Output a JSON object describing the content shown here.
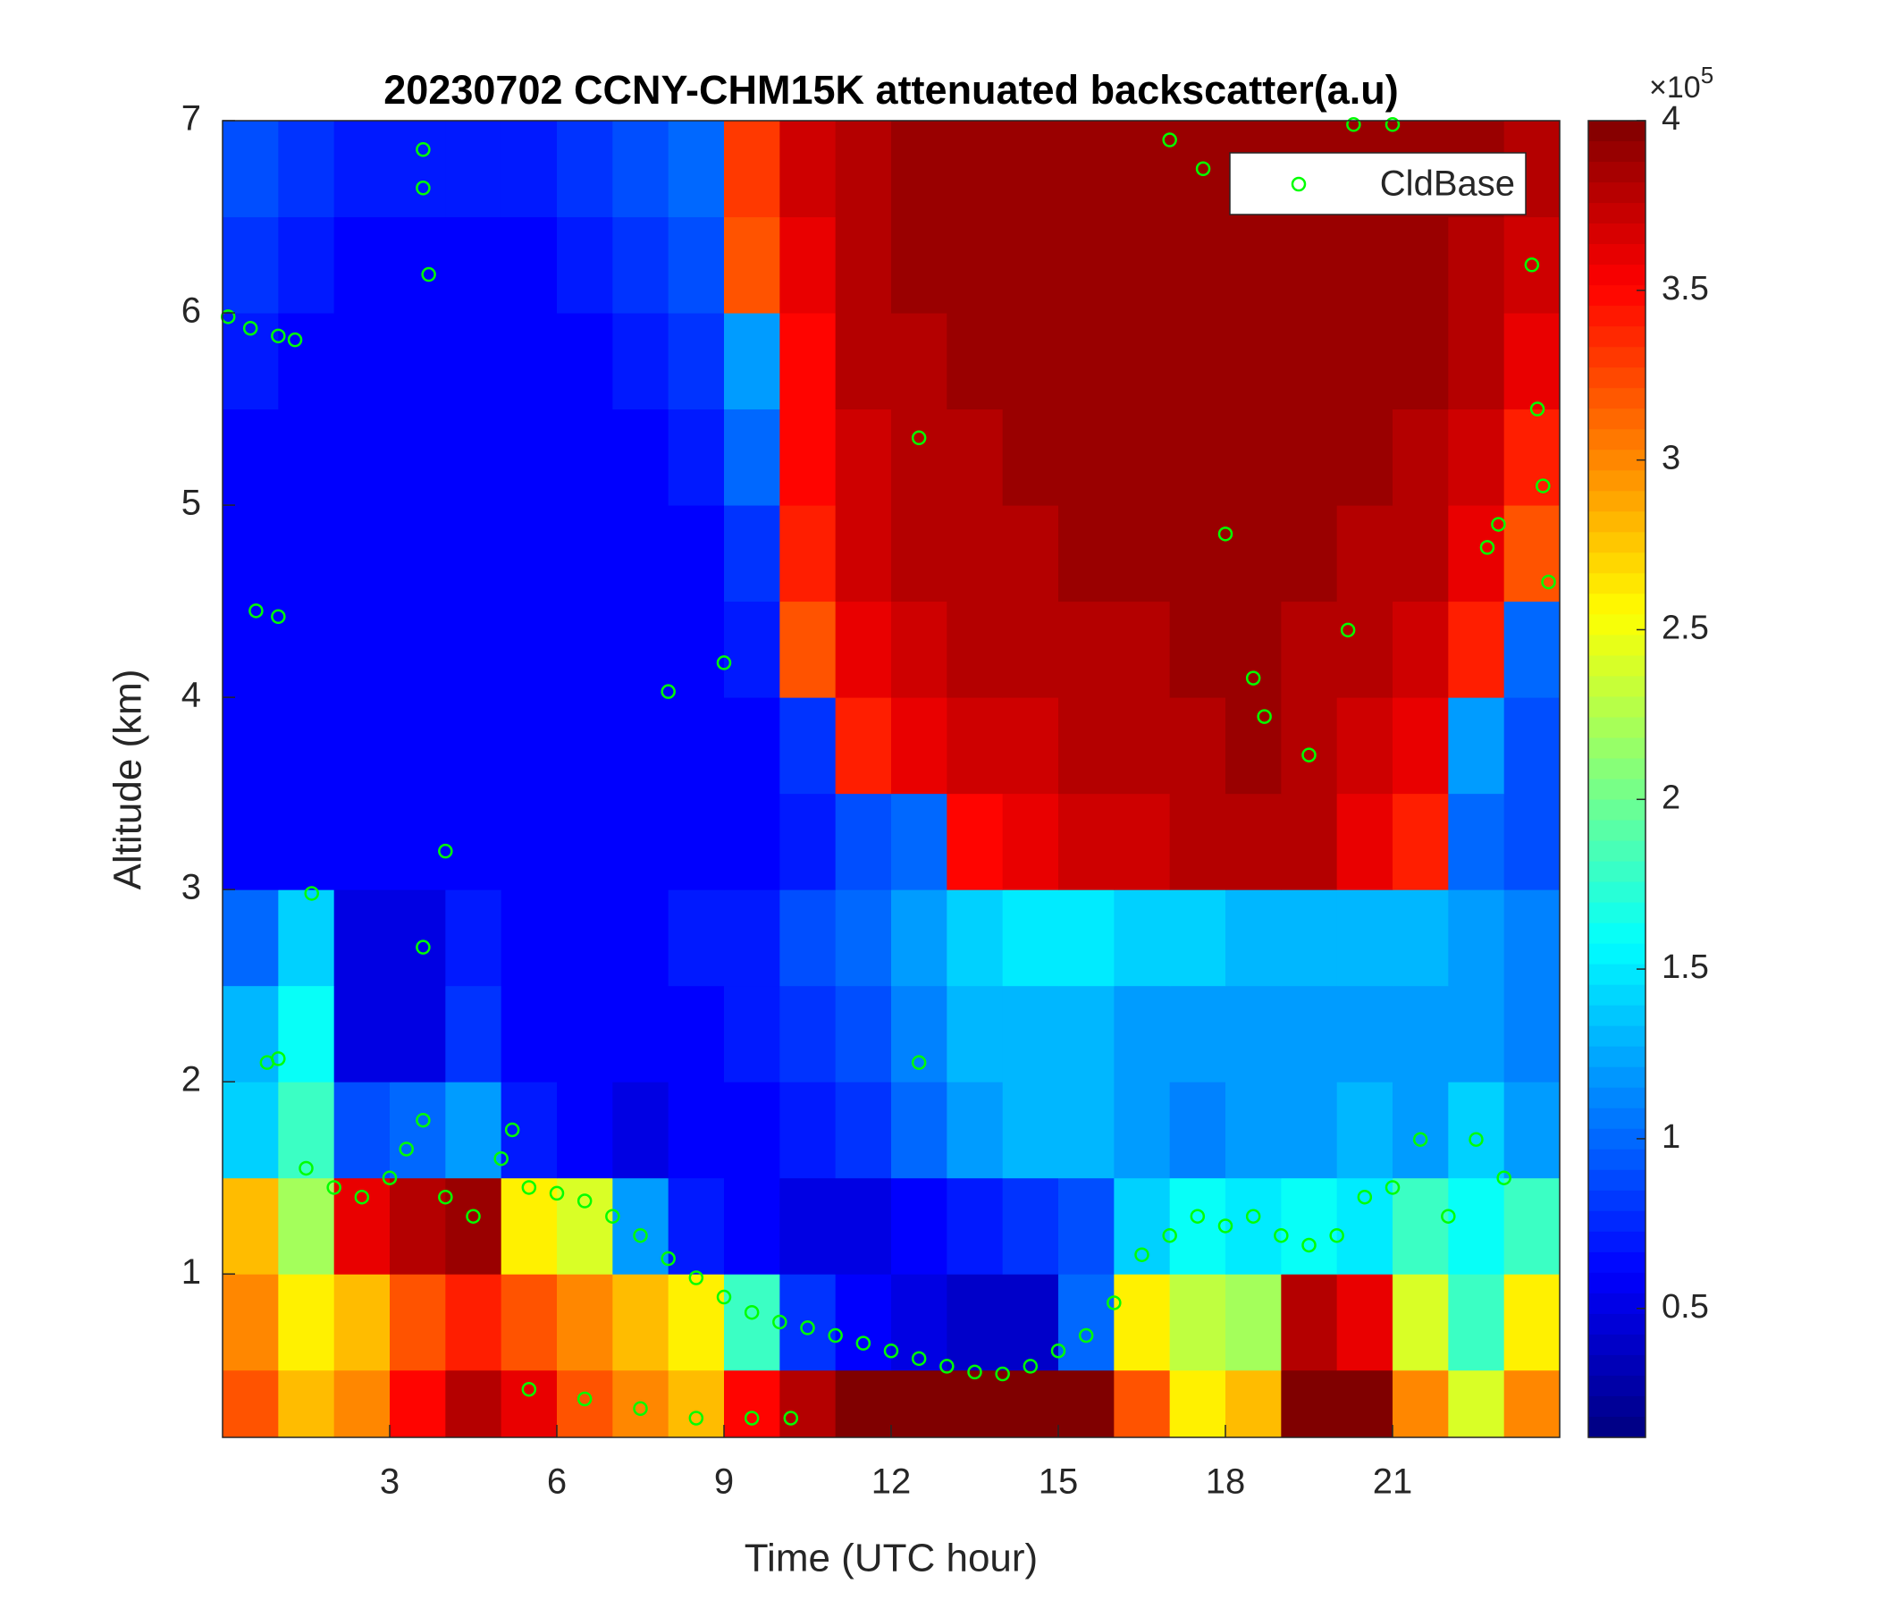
{
  "chart_data": {
    "type": "heatmap",
    "title": "20230702 CCNY-CHM15K attenuated backscatter(a.u)",
    "x_label": "Time (UTC hour)",
    "y_label": "Altitude (km)",
    "xlim": [
      0,
      24
    ],
    "ylim": [
      0.15,
      7
    ],
    "xticks": [
      3,
      6,
      9,
      12,
      15,
      18,
      21
    ],
    "yticks": [
      1,
      2,
      3,
      4,
      5,
      6,
      7
    ],
    "colormap": "jet",
    "clim": [
      0.12,
      4
    ],
    "colorbar_ticks": [
      0.5,
      1,
      1.5,
      2,
      2.5,
      3,
      3.5,
      4
    ],
    "colorbar_multiplier": "×10",
    "colorbar_exponent": "5",
    "x_edges": [
      0,
      1,
      2,
      3,
      4,
      5,
      6,
      7,
      8,
      9,
      10,
      11,
      12,
      13,
      14,
      15,
      16,
      17,
      18,
      19,
      20,
      21,
      22,
      23,
      24
    ],
    "y_edges": [
      0.15,
      0.5,
      1,
      1.5,
      2,
      2.5,
      3,
      3.5,
      4,
      4.5,
      5,
      5.5,
      6,
      6.5,
      7
    ],
    "values": [
      [
        3.2,
        2.8,
        3.0,
        3.5,
        3.8,
        3.6,
        3.2,
        3.0,
        2.8,
        3.5,
        3.8,
        4,
        4,
        4,
        4,
        4,
        3.2,
        2.6,
        2.8,
        4,
        4,
        3.0,
        2.4,
        3.0
      ],
      [
        3.0,
        2.6,
        2.8,
        3.2,
        3.4,
        3.2,
        3.0,
        2.8,
        2.6,
        1.8,
        0.8,
        0.6,
        0.5,
        0.4,
        0.4,
        1.0,
        2.6,
        2.3,
        2.2,
        3.8,
        3.6,
        2.4,
        1.8,
        2.6
      ],
      [
        2.8,
        2.2,
        3.6,
        3.8,
        3.9,
        2.6,
        2.4,
        1.2,
        0.7,
        0.6,
        0.5,
        0.5,
        0.6,
        0.7,
        0.8,
        0.9,
        1.4,
        1.6,
        1.5,
        1.6,
        1.5,
        1.8,
        1.6,
        1.8
      ],
      [
        1.4,
        1.8,
        0.9,
        1.0,
        1.2,
        0.7,
        0.6,
        0.5,
        0.6,
        0.6,
        0.7,
        0.8,
        1.0,
        1.2,
        1.3,
        1.3,
        1.2,
        1.1,
        1.2,
        1.2,
        1.3,
        1.2,
        1.4,
        1.2
      ],
      [
        1.3,
        1.6,
        0.5,
        0.5,
        0.8,
        0.6,
        0.6,
        0.6,
        0.6,
        0.7,
        0.8,
        0.9,
        1.1,
        1.3,
        1.3,
        1.3,
        1.2,
        1.2,
        1.2,
        1.2,
        1.2,
        1.2,
        1.2,
        1.1
      ],
      [
        1.0,
        1.4,
        0.5,
        0.5,
        0.7,
        0.6,
        0.6,
        0.6,
        0.7,
        0.7,
        0.9,
        1.0,
        1.2,
        1.4,
        1.5,
        1.5,
        1.4,
        1.4,
        1.3,
        1.3,
        1.3,
        1.3,
        1.2,
        1.1
      ],
      [
        0.6,
        0.6,
        0.6,
        0.6,
        0.6,
        0.6,
        0.6,
        0.6,
        0.6,
        0.6,
        0.7,
        0.9,
        1.0,
        3.5,
        3.6,
        3.7,
        3.7,
        3.8,
        3.8,
        3.8,
        3.6,
        3.4,
        1.0,
        0.9
      ],
      [
        0.6,
        0.6,
        0.6,
        0.6,
        0.6,
        0.6,
        0.6,
        0.6,
        0.6,
        0.6,
        0.8,
        3.4,
        3.6,
        3.7,
        3.7,
        3.8,
        3.8,
        3.8,
        3.9,
        3.8,
        3.7,
        3.6,
        1.2,
        0.9
      ],
      [
        0.6,
        0.6,
        0.6,
        0.6,
        0.6,
        0.6,
        0.6,
        0.6,
        0.6,
        0.7,
        3.2,
        3.6,
        3.7,
        3.8,
        3.8,
        3.8,
        3.8,
        3.9,
        3.9,
        3.8,
        3.8,
        3.7,
        3.4,
        1.0
      ],
      [
        0.6,
        0.6,
        0.6,
        0.6,
        0.6,
        0.6,
        0.6,
        0.6,
        0.6,
        0.8,
        3.4,
        3.7,
        3.8,
        3.8,
        3.8,
        3.9,
        3.9,
        3.9,
        3.9,
        3.9,
        3.8,
        3.8,
        3.6,
        3.2
      ],
      [
        0.6,
        0.6,
        0.6,
        0.6,
        0.6,
        0.6,
        0.6,
        0.6,
        0.7,
        1.0,
        3.5,
        3.7,
        3.8,
        3.8,
        3.9,
        3.9,
        3.9,
        3.9,
        3.9,
        3.9,
        3.9,
        3.8,
        3.7,
        3.4
      ],
      [
        0.7,
        0.6,
        0.6,
        0.6,
        0.6,
        0.6,
        0.6,
        0.7,
        0.8,
        1.2,
        3.5,
        3.8,
        3.8,
        3.9,
        3.9,
        3.9,
        3.9,
        3.9,
        3.9,
        3.9,
        3.9,
        3.9,
        3.8,
        3.6
      ],
      [
        0.8,
        0.7,
        0.6,
        0.6,
        0.6,
        0.6,
        0.7,
        0.8,
        0.9,
        3.2,
        3.6,
        3.8,
        3.9,
        3.9,
        3.9,
        3.9,
        3.9,
        3.9,
        3.9,
        3.9,
        3.9,
        3.9,
        3.8,
        3.7
      ],
      [
        0.9,
        0.8,
        0.7,
        0.7,
        0.7,
        0.7,
        0.8,
        0.9,
        1.0,
        3.3,
        3.7,
        3.8,
        3.9,
        3.9,
        3.9,
        3.9,
        3.9,
        3.9,
        3.9,
        3.9,
        3.9,
        3.9,
        3.9,
        3.8
      ]
    ],
    "legend": "northeast",
    "cloud_base": {
      "name": "CldBase",
      "color": "#00ff00",
      "x": [
        0.1,
        0.5,
        1.0,
        1.3,
        0.6,
        1.0,
        1.6,
        0.8,
        1.0,
        1.5,
        2,
        2.5,
        3,
        3.3,
        3.6,
        3.6,
        3.6,
        3.6,
        3.7,
        4,
        4,
        4.5,
        5,
        5.2,
        5.5,
        6,
        6.5,
        7,
        7.5,
        8,
        8.5,
        9,
        9.5,
        10,
        10.5,
        11,
        11.5,
        12,
        12.5,
        13,
        13.5,
        14,
        14.5,
        15,
        15.5,
        16,
        16.5,
        17,
        17.5,
        18,
        18.5,
        19,
        19.5,
        20,
        20.5,
        21,
        21.5,
        22,
        22.5,
        23,
        5.5,
        6.5,
        7.5,
        8.5,
        9.5,
        10.2,
        8,
        9,
        12.5,
        12.5,
        18,
        18.5,
        18.7,
        19.5,
        20.2,
        20.3,
        21,
        22.7,
        22.9,
        23.5,
        23.6,
        23.7,
        23.8,
        17,
        17.6
      ],
      "y": [
        5.98,
        5.92,
        5.88,
        5.86,
        4.45,
        4.42,
        2.98,
        2.1,
        2.12,
        1.55,
        1.45,
        1.4,
        1.5,
        1.65,
        1.8,
        2.7,
        6.85,
        6.65,
        6.2,
        3.2,
        1.4,
        1.3,
        1.6,
        1.75,
        1.45,
        1.42,
        1.38,
        1.3,
        1.2,
        1.08,
        0.98,
        0.88,
        0.8,
        0.75,
        0.72,
        0.68,
        0.64,
        0.6,
        0.56,
        0.52,
        0.49,
        0.48,
        0.52,
        0.6,
        0.68,
        0.85,
        1.1,
        1.2,
        1.3,
        1.25,
        1.3,
        1.2,
        1.15,
        1.2,
        1.4,
        1.45,
        1.7,
        1.3,
        1.7,
        1.5,
        0.4,
        0.35,
        0.3,
        0.25,
        0.25,
        0.25,
        4.03,
        4.18,
        5.35,
        2.1,
        4.85,
        4.1,
        3.9,
        3.7,
        4.35,
        6.98,
        6.98,
        4.78,
        4.9,
        6.25,
        5.5,
        5.1,
        4.6,
        6.9,
        6.75
      ]
    }
  }
}
